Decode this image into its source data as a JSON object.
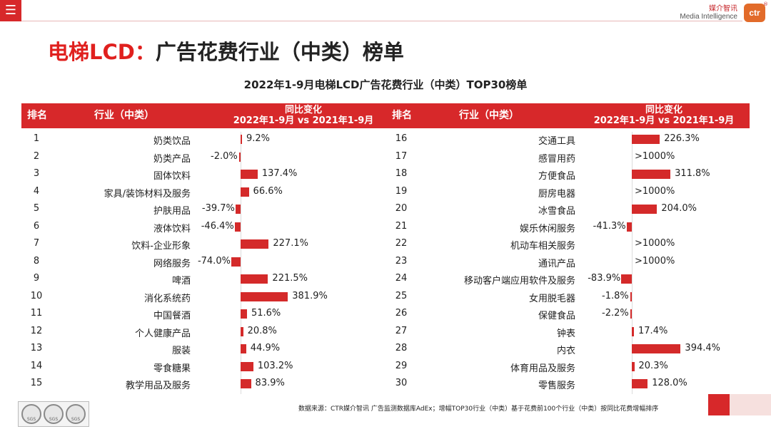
{
  "menu_icon": "hamburger-icon",
  "brand": {
    "cn": "媒介智讯",
    "en": "Media Intelligence",
    "logo": "ctr",
    "reg": "®"
  },
  "title": {
    "red": "电梯LCD：",
    "black": "广告花费行业（中类）榜单"
  },
  "chart_title": "2022年1-9月电梯LCD广告花费行业（中类）TOP30榜单",
  "headers": {
    "rank": "排名",
    "industry": "行业（中类）",
    "change_line1": "同比变化",
    "change_line2": "2022年1-9月 vs 2021年1-9月"
  },
  "colors": {
    "accent": "#d7282a",
    "bar": "#d42a2a"
  },
  "chart_data": {
    "type": "bar",
    "orientation": "horizontal",
    "title": "2022年1-9月电梯LCD广告花费行业（中类）TOP30榜单",
    "unit": "%",
    "note": ">1000% shown as label without bar",
    "rows": [
      {
        "rank": "1",
        "name": "奶类饮品",
        "value": 9.2,
        "label": "9.2%"
      },
      {
        "rank": "2",
        "name": "奶类产品",
        "value": -2.0,
        "label": "-2.0%"
      },
      {
        "rank": "3",
        "name": "固体饮料",
        "value": 137.4,
        "label": "137.4%"
      },
      {
        "rank": "4",
        "name": "家具/装饰材料及服务",
        "value": 66.6,
        "label": "66.6%"
      },
      {
        "rank": "5",
        "name": "护肤用品",
        "value": -39.7,
        "label": "-39.7%"
      },
      {
        "rank": "6",
        "name": "液体饮料",
        "value": -46.4,
        "label": "-46.4%"
      },
      {
        "rank": "7",
        "name": "饮料-企业形象",
        "value": 227.1,
        "label": "227.1%"
      },
      {
        "rank": "8",
        "name": "网络服务",
        "value": -74.0,
        "label": "-74.0%"
      },
      {
        "rank": "9",
        "name": "啤酒",
        "value": 221.5,
        "label": "221.5%"
      },
      {
        "rank": "10",
        "name": "消化系统药",
        "value": 381.9,
        "label": "381.9%"
      },
      {
        "rank": "11",
        "name": "中国餐酒",
        "value": 51.6,
        "label": "51.6%"
      },
      {
        "rank": "12",
        "name": "个人健康产品",
        "value": 20.8,
        "label": "20.8%"
      },
      {
        "rank": "13",
        "name": "服装",
        "value": 44.9,
        "label": "44.9%"
      },
      {
        "rank": "14",
        "name": "零食糖果",
        "value": 103.2,
        "label": "103.2%"
      },
      {
        "rank": "15",
        "name": "教学用品及服务",
        "value": 83.9,
        "label": "83.9%"
      },
      {
        "rank": "16",
        "name": "交通工具",
        "value": 226.3,
        "label": "226.3%"
      },
      {
        "rank": "17",
        "name": "感冒用药",
        "value": null,
        "label": ">1000%"
      },
      {
        "rank": "18",
        "name": "方便食品",
        "value": 311.8,
        "label": "311.8%"
      },
      {
        "rank": "19",
        "name": "厨房电器",
        "value": null,
        "label": ">1000%"
      },
      {
        "rank": "20",
        "name": "冰雪食品",
        "value": 204.0,
        "label": "204.0%"
      },
      {
        "rank": "21",
        "name": "娱乐休闲服务",
        "value": -41.3,
        "label": "-41.3%"
      },
      {
        "rank": "22",
        "name": "机动车相关服务",
        "value": null,
        "label": ">1000%"
      },
      {
        "rank": "23",
        "name": "通讯产品",
        "value": null,
        "label": ">1000%"
      },
      {
        "rank": "24",
        "name": "移动客户端应用软件及服务",
        "value": -83.9,
        "label": "-83.9%"
      },
      {
        "rank": "25",
        "name": "女用脱毛器",
        "value": -1.8,
        "label": "-1.8%"
      },
      {
        "rank": "26",
        "name": "保健食品",
        "value": -2.2,
        "label": "-2.2%"
      },
      {
        "rank": "27",
        "name": "钟表",
        "value": 17.4,
        "label": "17.4%"
      },
      {
        "rank": "28",
        "name": "内衣",
        "value": 394.4,
        "label": "394.4%"
      },
      {
        "rank": "29",
        "name": "体育用品及服务",
        "value": 20.3,
        "label": "20.3%"
      },
      {
        "rank": "30",
        "name": "零售服务",
        "value": 128.0,
        "label": "128.0%"
      }
    ]
  },
  "footer": {
    "source": "数据来源：CTR媒介智讯 广告监测数据库AdEx；增幅TOP30行业（中类）基于花费前100个行业（中类）按同比花费增幅排序",
    "seals": [
      "SGS",
      "SGS",
      "SGS"
    ]
  }
}
